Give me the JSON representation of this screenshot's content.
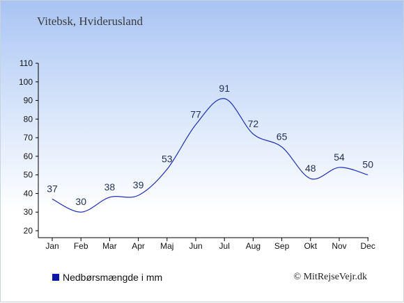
{
  "title": "Vitebsk, Hviderusland",
  "legend_label": "Nedbørsmængde i mm",
  "credit": "© MitRejseVejr.dk",
  "colors": {
    "line": "#1e2fb5",
    "legend_swatch": "#0b1aa6"
  },
  "chart_data": {
    "type": "line",
    "categories": [
      "Jan",
      "Feb",
      "Mar",
      "Apr",
      "Maj",
      "Jun",
      "Jul",
      "Aug",
      "Sep",
      "Okt",
      "Nov",
      "Dec"
    ],
    "series": [
      {
        "name": "Nedbørsmængde i mm",
        "values": [
          37,
          30,
          38,
          39,
          53,
          77,
          91,
          72,
          65,
          48,
          54,
          50
        ]
      }
    ],
    "ylim": [
      20,
      110
    ],
    "yticks": [
      20,
      30,
      40,
      50,
      60,
      70,
      80,
      90,
      100,
      110
    ],
    "grid": false,
    "legend_position": "bottom-left"
  }
}
